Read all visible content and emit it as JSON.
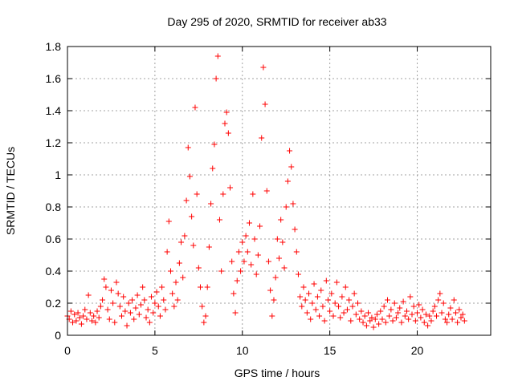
{
  "chart_data": {
    "type": "scatter",
    "title": "Day 295 of 2020, SRMTID for receiver ab33",
    "xlabel": "GPS time / hours",
    "ylabel": "SRMTID / TECUs",
    "xlim": [
      0,
      24.2
    ],
    "ylim": [
      0,
      1.8
    ],
    "xticks": [
      0,
      5,
      10,
      15,
      20
    ],
    "xtick_labels": [
      "0",
      "5",
      "10",
      "15",
      "20"
    ],
    "yticks": [
      0,
      0.2,
      0.4,
      0.6,
      0.8,
      1.0,
      1.2,
      1.4,
      1.6,
      1.8
    ],
    "ytick_labels": [
      "0",
      "0.2",
      "0.4",
      "0.6",
      "0.8",
      "1",
      "1.2",
      "1.4",
      "1.6",
      "1.8"
    ],
    "grid": true,
    "marker": "plus",
    "color": "#ff0000",
    "series": [
      {
        "name": "SRMTID",
        "points": [
          [
            0.0,
            0.12
          ],
          [
            0.1,
            0.1
          ],
          [
            0.2,
            0.15
          ],
          [
            0.3,
            0.08
          ],
          [
            0.4,
            0.13
          ],
          [
            0.5,
            0.09
          ],
          [
            0.6,
            0.14
          ],
          [
            0.7,
            0.11
          ],
          [
            0.8,
            0.07
          ],
          [
            0.9,
            0.12
          ],
          [
            1.0,
            0.16
          ],
          [
            1.1,
            0.1
          ],
          [
            1.2,
            0.25
          ],
          [
            1.3,
            0.14
          ],
          [
            1.4,
            0.09
          ],
          [
            1.5,
            0.12
          ],
          [
            1.6,
            0.08
          ],
          [
            1.7,
            0.15
          ],
          [
            1.8,
            0.11
          ],
          [
            1.9,
            0.18
          ],
          [
            2.0,
            0.22
          ],
          [
            2.1,
            0.35
          ],
          [
            2.2,
            0.3
          ],
          [
            2.3,
            0.16
          ],
          [
            2.4,
            0.1
          ],
          [
            2.5,
            0.28
          ],
          [
            2.6,
            0.2
          ],
          [
            2.7,
            0.08
          ],
          [
            2.8,
            0.33
          ],
          [
            2.9,
            0.26
          ],
          [
            3.0,
            0.18
          ],
          [
            3.1,
            0.12
          ],
          [
            3.2,
            0.24
          ],
          [
            3.3,
            0.15
          ],
          [
            3.4,
            0.06
          ],
          [
            3.5,
            0.2
          ],
          [
            3.6,
            0.14
          ],
          [
            3.7,
            0.22
          ],
          [
            3.8,
            0.1
          ],
          [
            3.9,
            0.17
          ],
          [
            4.0,
            0.25
          ],
          [
            4.1,
            0.13
          ],
          [
            4.2,
            0.19
          ],
          [
            4.3,
            0.3
          ],
          [
            4.4,
            0.22
          ],
          [
            4.5,
            0.11
          ],
          [
            4.6,
            0.16
          ],
          [
            4.7,
            0.08
          ],
          [
            4.8,
            0.24
          ],
          [
            4.9,
            0.14
          ],
          [
            5.0,
            0.2
          ],
          [
            5.1,
            0.27
          ],
          [
            5.2,
            0.18
          ],
          [
            5.3,
            0.12
          ],
          [
            5.4,
            0.3
          ],
          [
            5.5,
            0.22
          ],
          [
            5.6,
            0.16
          ],
          [
            5.7,
            0.52
          ],
          [
            5.8,
            0.71
          ],
          [
            5.9,
            0.4
          ],
          [
            6.0,
            0.26
          ],
          [
            6.1,
            0.18
          ],
          [
            6.2,
            0.33
          ],
          [
            6.3,
            0.22
          ],
          [
            6.4,
            0.45
          ],
          [
            6.5,
            0.58
          ],
          [
            6.6,
            0.36
          ],
          [
            6.7,
            0.62
          ],
          [
            6.8,
            0.84
          ],
          [
            6.9,
            1.17
          ],
          [
            7.0,
            0.99
          ],
          [
            7.1,
            0.74
          ],
          [
            7.2,
            0.56
          ],
          [
            7.3,
            1.42
          ],
          [
            7.4,
            0.88
          ],
          [
            7.5,
            0.42
          ],
          [
            7.6,
            0.3
          ],
          [
            7.7,
            0.18
          ],
          [
            7.8,
            0.08
          ],
          [
            7.9,
            0.12
          ],
          [
            8.0,
            0.3
          ],
          [
            8.1,
            0.55
          ],
          [
            8.2,
            0.82
          ],
          [
            8.3,
            1.04
          ],
          [
            8.4,
            1.19
          ],
          [
            8.5,
            1.6
          ],
          [
            8.6,
            1.74
          ],
          [
            8.7,
            0.72
          ],
          [
            8.8,
            0.4
          ],
          [
            8.9,
            0.88
          ],
          [
            9.0,
            1.32
          ],
          [
            9.1,
            1.39
          ],
          [
            9.2,
            1.26
          ],
          [
            9.3,
            0.92
          ],
          [
            9.4,
            0.46
          ],
          [
            9.5,
            0.26
          ],
          [
            9.6,
            0.14
          ],
          [
            9.7,
            0.34
          ],
          [
            9.8,
            0.52
          ],
          [
            9.9,
            0.4
          ],
          [
            10.0,
            0.58
          ],
          [
            10.1,
            0.46
          ],
          [
            10.2,
            0.62
          ],
          [
            10.3,
            0.52
          ],
          [
            10.4,
            0.7
          ],
          [
            10.5,
            0.44
          ],
          [
            10.6,
            0.88
          ],
          [
            10.7,
            0.6
          ],
          [
            10.8,
            0.38
          ],
          [
            10.9,
            0.5
          ],
          [
            11.0,
            0.68
          ],
          [
            11.1,
            1.23
          ],
          [
            11.2,
            1.67
          ],
          [
            11.3,
            1.44
          ],
          [
            11.4,
            0.9
          ],
          [
            11.5,
            0.46
          ],
          [
            11.6,
            0.28
          ],
          [
            11.7,
            0.12
          ],
          [
            11.8,
            0.22
          ],
          [
            11.9,
            0.36
          ],
          [
            12.0,
            0.6
          ],
          [
            12.1,
            0.48
          ],
          [
            12.2,
            0.72
          ],
          [
            12.3,
            0.58
          ],
          [
            12.4,
            0.42
          ],
          [
            12.5,
            0.8
          ],
          [
            12.6,
            0.96
          ],
          [
            12.7,
            1.15
          ],
          [
            12.8,
            1.05
          ],
          [
            12.9,
            0.82
          ],
          [
            13.0,
            0.66
          ],
          [
            13.1,
            0.52
          ],
          [
            13.2,
            0.38
          ],
          [
            13.3,
            0.24
          ],
          [
            13.4,
            0.18
          ],
          [
            13.5,
            0.3
          ],
          [
            13.6,
            0.22
          ],
          [
            13.7,
            0.14
          ],
          [
            13.8,
            0.26
          ],
          [
            13.9,
            0.1
          ],
          [
            14.0,
            0.2
          ],
          [
            14.1,
            0.32
          ],
          [
            14.2,
            0.16
          ],
          [
            14.3,
            0.24
          ],
          [
            14.4,
            0.12
          ],
          [
            14.5,
            0.28
          ],
          [
            14.6,
            0.18
          ],
          [
            14.7,
            0.09
          ],
          [
            14.8,
            0.34
          ],
          [
            14.9,
            0.22
          ],
          [
            15.0,
            0.15
          ],
          [
            15.1,
            0.26
          ],
          [
            15.2,
            0.12
          ],
          [
            15.3,
            0.2
          ],
          [
            15.4,
            0.33
          ],
          [
            15.5,
            0.18
          ],
          [
            15.6,
            0.11
          ],
          [
            15.7,
            0.24
          ],
          [
            15.8,
            0.14
          ],
          [
            15.9,
            0.3
          ],
          [
            16.0,
            0.16
          ],
          [
            16.1,
            0.22
          ],
          [
            16.2,
            0.09
          ],
          [
            16.3,
            0.18
          ],
          [
            16.4,
            0.26
          ],
          [
            16.5,
            0.13
          ],
          [
            16.6,
            0.2
          ],
          [
            16.7,
            0.1
          ],
          [
            16.8,
            0.15
          ],
          [
            16.9,
            0.08
          ],
          [
            17.0,
            0.12
          ],
          [
            17.1,
            0.06
          ],
          [
            17.2,
            0.14
          ],
          [
            17.3,
            0.09
          ],
          [
            17.4,
            0.11
          ],
          [
            17.5,
            0.05
          ],
          [
            17.6,
            0.1
          ],
          [
            17.7,
            0.13
          ],
          [
            17.8,
            0.07
          ],
          [
            17.9,
            0.15
          ],
          [
            18.0,
            0.1
          ],
          [
            18.1,
            0.18
          ],
          [
            18.2,
            0.08
          ],
          [
            18.3,
            0.22
          ],
          [
            18.4,
            0.12
          ],
          [
            18.5,
            0.16
          ],
          [
            18.6,
            0.09
          ],
          [
            18.7,
            0.2
          ],
          [
            18.8,
            0.11
          ],
          [
            18.9,
            0.14
          ],
          [
            19.0,
            0.17
          ],
          [
            19.1,
            0.08
          ],
          [
            19.2,
            0.21
          ],
          [
            19.3,
            0.12
          ],
          [
            19.4,
            0.15
          ],
          [
            19.5,
            0.1
          ],
          [
            19.6,
            0.24
          ],
          [
            19.7,
            0.13
          ],
          [
            19.8,
            0.18
          ],
          [
            19.9,
            0.09
          ],
          [
            20.0,
            0.14
          ],
          [
            20.1,
            0.19
          ],
          [
            20.2,
            0.11
          ],
          [
            20.3,
            0.16
          ],
          [
            20.4,
            0.08
          ],
          [
            20.5,
            0.13
          ],
          [
            20.6,
            0.06
          ],
          [
            20.7,
            0.12
          ],
          [
            20.8,
            0.09
          ],
          [
            20.9,
            0.15
          ],
          [
            21.0,
            0.18
          ],
          [
            21.1,
            0.12
          ],
          [
            21.2,
            0.22
          ],
          [
            21.3,
            0.26
          ],
          [
            21.4,
            0.14
          ],
          [
            21.5,
            0.2
          ],
          [
            21.6,
            0.1
          ],
          [
            21.7,
            0.08
          ],
          [
            21.8,
            0.13
          ],
          [
            21.9,
            0.17
          ],
          [
            22.0,
            0.1
          ],
          [
            22.1,
            0.22
          ],
          [
            22.2,
            0.14
          ],
          [
            22.3,
            0.08
          ],
          [
            22.4,
            0.16
          ],
          [
            22.5,
            0.11
          ],
          [
            22.6,
            0.13
          ],
          [
            22.7,
            0.09
          ]
        ]
      }
    ]
  }
}
